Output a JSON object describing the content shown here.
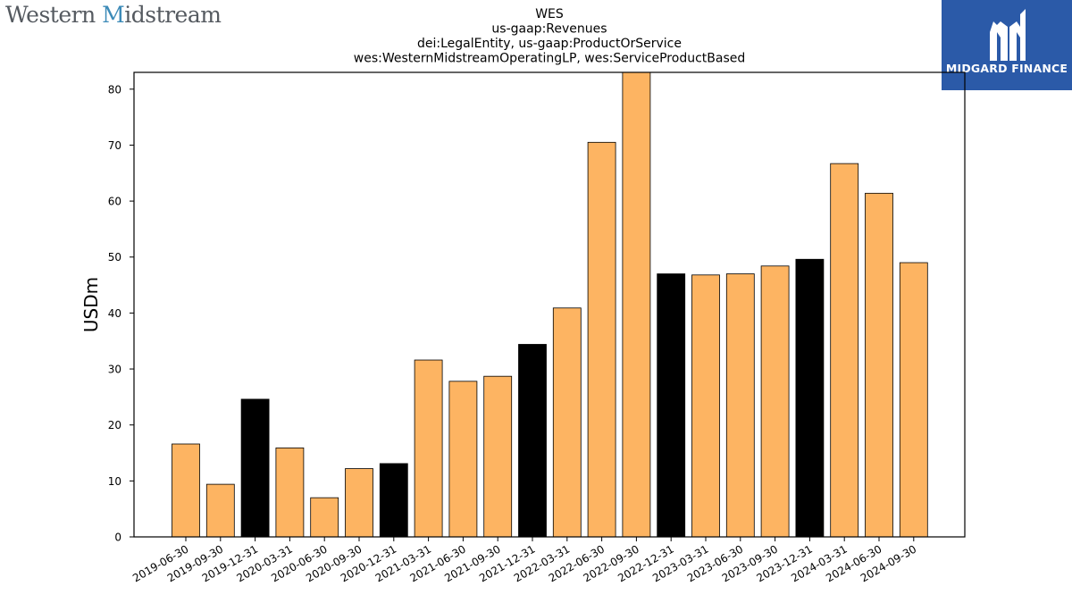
{
  "branding": {
    "left_logo_text_1": "Western ",
    "left_logo_text_2": "M",
    "left_logo_text_3": "idstream",
    "right_logo_text": "MIDGARD FINANCE",
    "right_logo_bg": "#2b5aa8"
  },
  "chart_data": {
    "type": "bar",
    "title": [
      "WES",
      "us-gaap:Revenues",
      "dei:LegalEntity, us-gaap:ProductOrService",
      "wes:WesternMidstreamOperatingLP, wes:ServiceProductBased"
    ],
    "xlabel": "",
    "ylabel": "USDm",
    "ylim": [
      0,
      83
    ],
    "yticks": [
      0,
      10,
      20,
      30,
      40,
      50,
      60,
      70,
      80
    ],
    "grid": false,
    "categories": [
      "2019-06-30",
      "2019-09-30",
      "2019-12-31",
      "2020-03-31",
      "2020-06-30",
      "2020-09-30",
      "2020-12-31",
      "2021-03-31",
      "2021-06-30",
      "2021-09-30",
      "2021-12-31",
      "2022-03-31",
      "2022-06-30",
      "2022-09-30",
      "2022-12-31",
      "2023-03-31",
      "2023-06-30",
      "2023-09-30",
      "2023-12-31",
      "2024-03-31",
      "2024-06-30",
      "2024-09-30"
    ],
    "values": [
      16.6,
      9.4,
      24.6,
      15.9,
      7.0,
      12.2,
      13.1,
      31.6,
      27.8,
      28.7,
      34.4,
      40.9,
      70.5,
      83.5,
      47.0,
      46.8,
      47.0,
      48.4,
      49.6,
      66.7,
      61.4,
      49.0
    ],
    "colors": {
      "quarter": "#fdb462",
      "year_end": "#000000"
    },
    "year_end_flags": [
      false,
      false,
      true,
      false,
      false,
      false,
      true,
      false,
      false,
      false,
      true,
      false,
      false,
      false,
      true,
      false,
      false,
      false,
      true,
      false,
      false,
      false
    ]
  }
}
